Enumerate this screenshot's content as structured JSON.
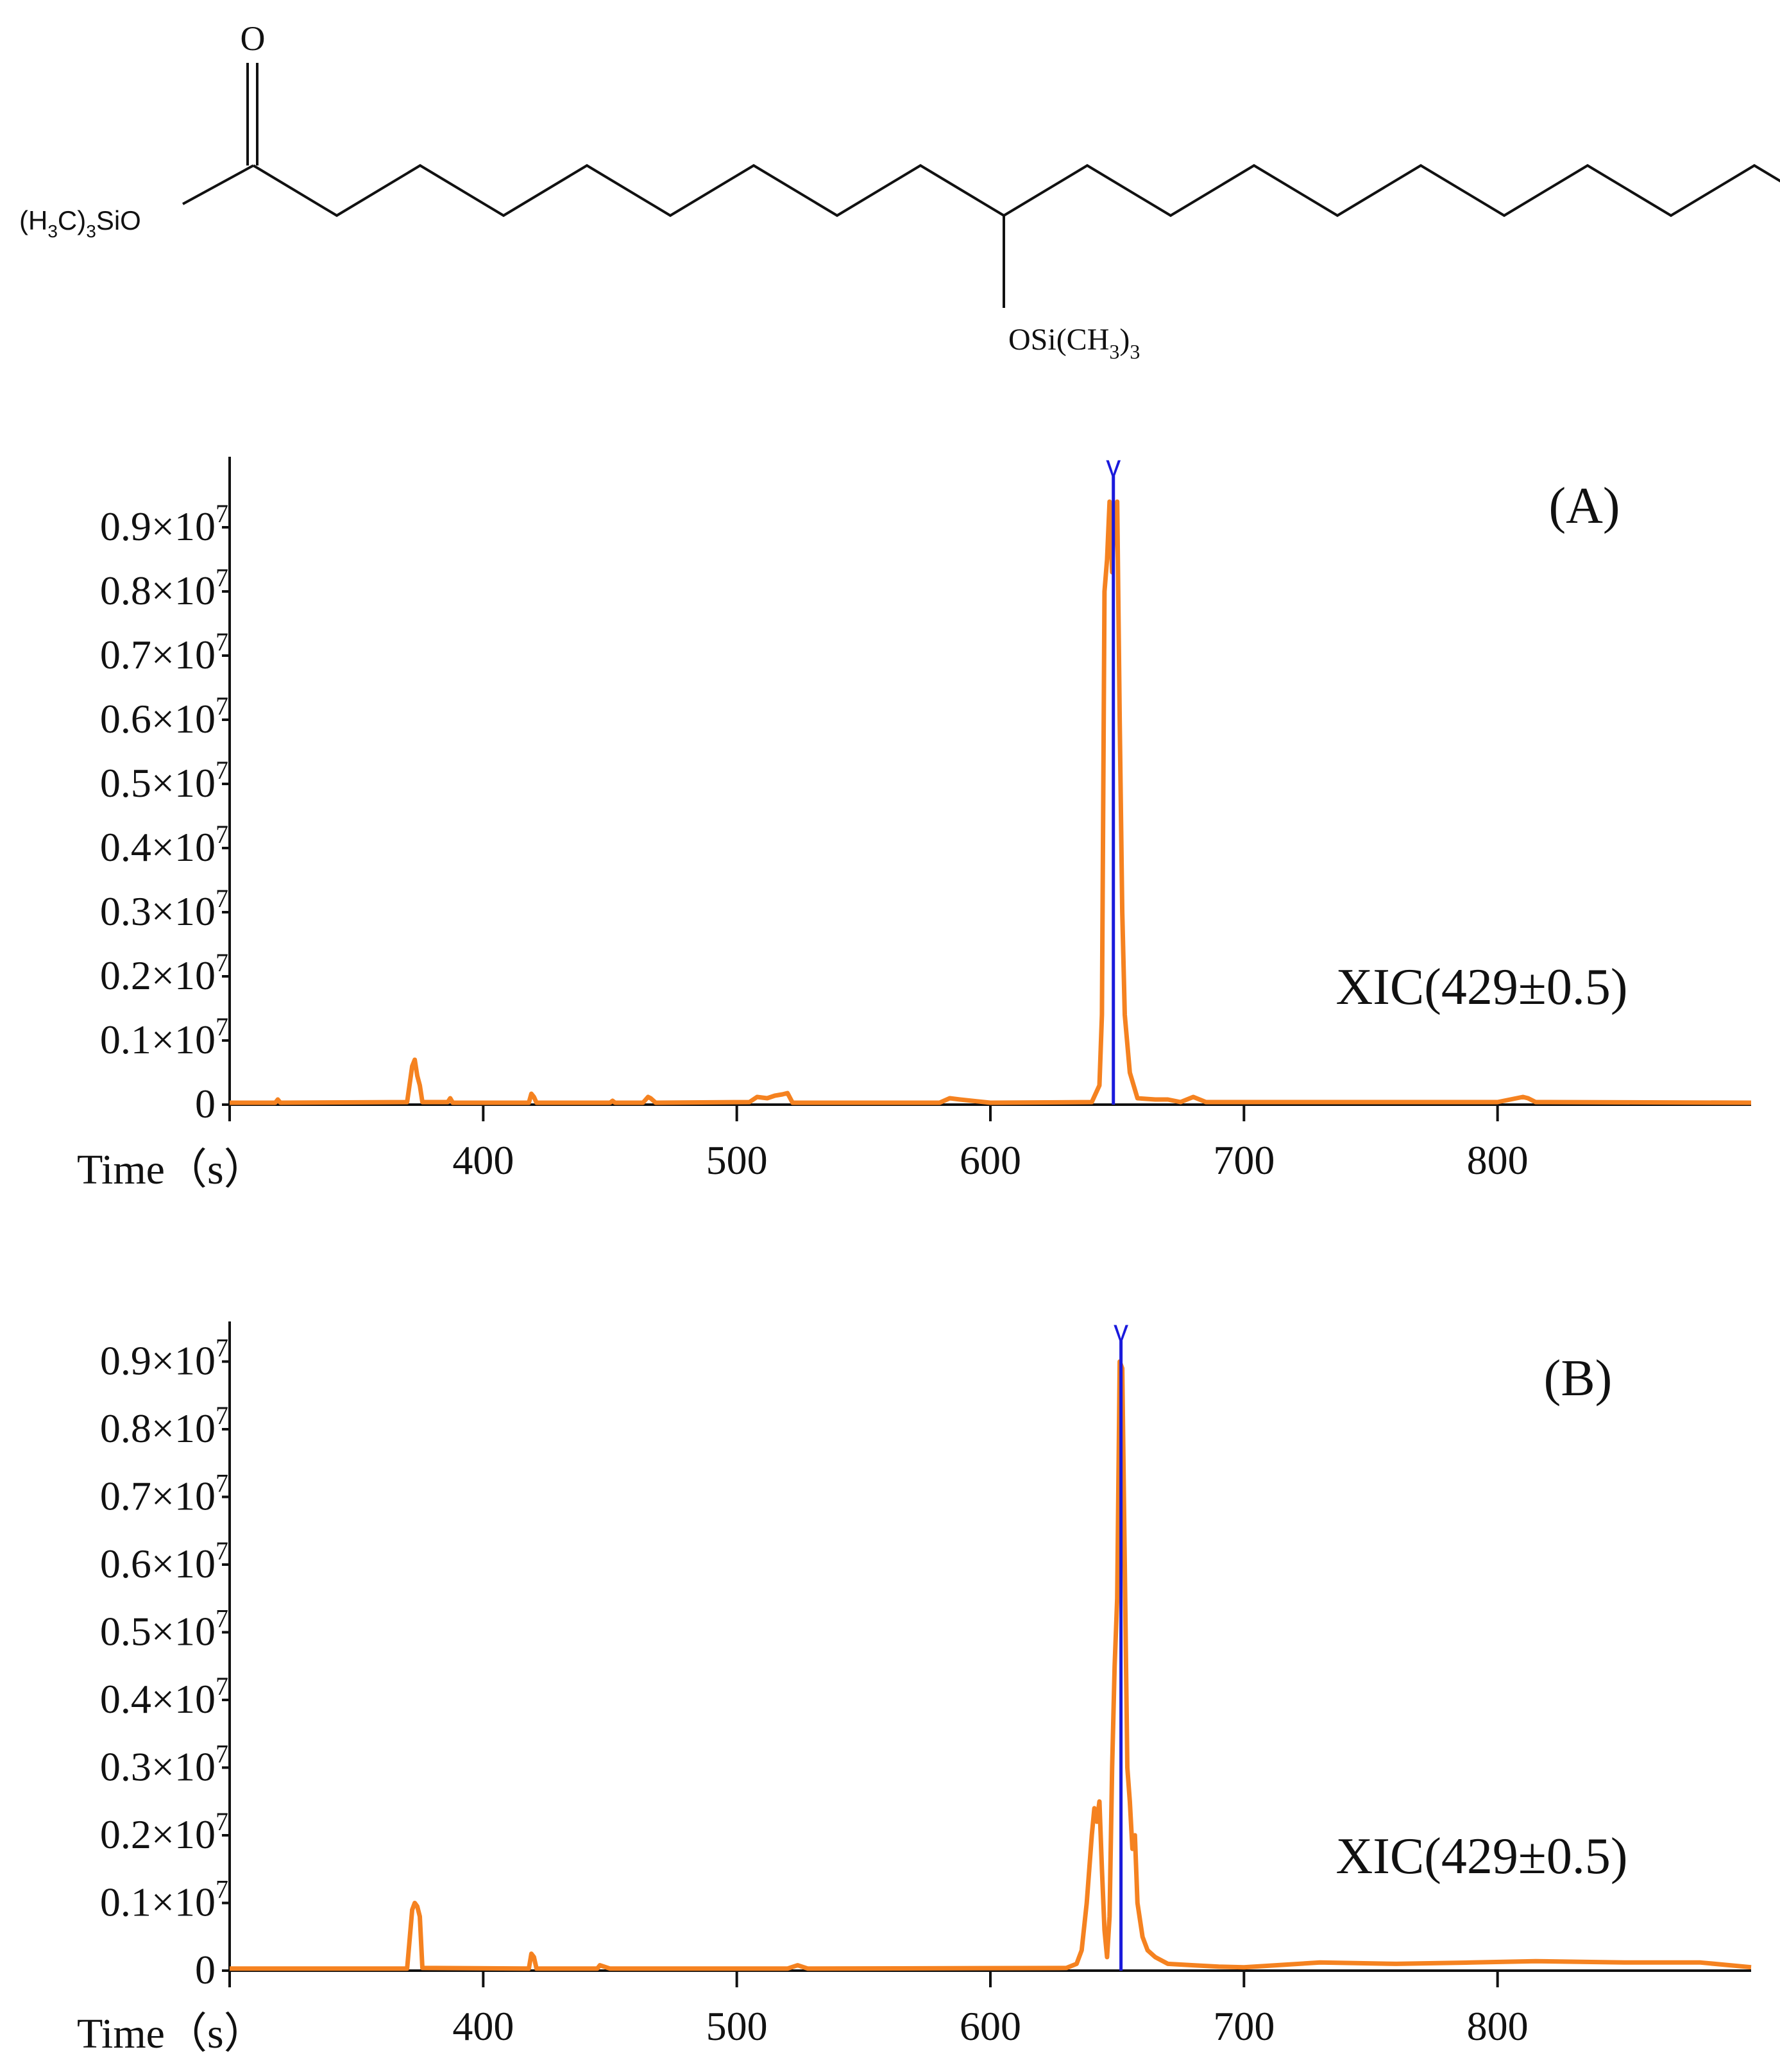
{
  "structure": {
    "carbonyl_O": "O",
    "ester_group": {
      "a": "(H",
      "s1": "3",
      "b": "C)",
      "s2": "3",
      "c": "SiO"
    },
    "ether_group": {
      "a": "OSi(CH",
      "s1": "3",
      "b": ")",
      "s2": "3"
    }
  },
  "colors": {
    "trace": "#f58220",
    "marker": "#1a1adc",
    "axis": "#111111"
  },
  "chart_data": [
    {
      "type": "line",
      "panel_label": "(A)",
      "annotation": "XIC(429±0.5)",
      "xlabel": "Time（s）",
      "xlim": [
        300,
        900
      ],
      "ylim": [
        0,
        0.96
      ],
      "x_ticks": [
        400,
        500,
        600,
        700,
        800
      ],
      "y_ticks": [
        {
          "value": 0,
          "label": "0"
        },
        {
          "value": 0.1,
          "label": "0.1×10",
          "exp": "7"
        },
        {
          "value": 0.2,
          "label": "0.2×10",
          "exp": "7"
        },
        {
          "value": 0.3,
          "label": "0.3×10",
          "exp": "7"
        },
        {
          "value": 0.4,
          "label": "0.4×10",
          "exp": "7"
        },
        {
          "value": 0.5,
          "label": "0.5×10",
          "exp": "7"
        },
        {
          "value": 0.6,
          "label": "0.6×10",
          "exp": "7"
        },
        {
          "value": 0.7,
          "label": "0.7×10",
          "exp": "7"
        },
        {
          "value": 0.8,
          "label": "0.8×10",
          "exp": "7"
        },
        {
          "value": 0.9,
          "label": "0.9×10",
          "exp": "7"
        }
      ],
      "marker_x": 648.5,
      "marker_label": "v",
      "x": [
        300,
        318,
        319,
        320,
        370,
        372,
        373,
        374,
        375,
        376,
        386,
        387,
        388,
        418,
        419,
        420,
        421,
        450,
        451,
        452,
        463,
        465,
        466,
        468,
        505,
        508,
        512,
        515,
        518,
        520,
        522,
        580,
        584,
        588,
        600,
        640,
        643,
        644,
        645,
        646,
        647,
        648,
        649,
        650,
        651,
        652,
        653,
        655,
        658,
        665,
        670,
        675,
        680,
        685,
        800,
        810,
        812,
        815,
        900
      ],
      "values": [
        0.003,
        0.003,
        0.008,
        0.003,
        0.004,
        0.06,
        0.07,
        0.045,
        0.03,
        0.004,
        0.004,
        0.01,
        0.003,
        0.003,
        0.017,
        0.012,
        0.003,
        0.003,
        0.006,
        0.003,
        0.003,
        0.012,
        0.01,
        0.003,
        0.004,
        0.012,
        0.01,
        0.014,
        0.016,
        0.018,
        0.003,
        0.003,
        0.01,
        0.008,
        0.003,
        0.004,
        0.03,
        0.14,
        0.8,
        0.85,
        0.94,
        0.83,
        0.93,
        0.94,
        0.6,
        0.3,
        0.14,
        0.05,
        0.01,
        0.008,
        0.008,
        0.004,
        0.012,
        0.004,
        0.004,
        0.012,
        0.01,
        0.004,
        0.003
      ]
    },
    {
      "type": "line",
      "panel_label": "(B)",
      "annotation": "XIC(429±0.5)",
      "xlabel": "Time（s）",
      "xlim": [
        300,
        900
      ],
      "ylim": [
        0,
        0.96
      ],
      "x_ticks": [
        400,
        500,
        600,
        700,
        800
      ],
      "y_ticks": [
        {
          "value": 0,
          "label": "0"
        },
        {
          "value": 0.1,
          "label": "0.1×10",
          "exp": "7"
        },
        {
          "value": 0.2,
          "label": "0.2×10",
          "exp": "7"
        },
        {
          "value": 0.3,
          "label": "0.3×10",
          "exp": "7"
        },
        {
          "value": 0.4,
          "label": "0.4×10",
          "exp": "7"
        },
        {
          "value": 0.5,
          "label": "0.5×10",
          "exp": "7"
        },
        {
          "value": 0.6,
          "label": "0.6×10",
          "exp": "7"
        },
        {
          "value": 0.7,
          "label": "0.7×10",
          "exp": "7"
        },
        {
          "value": 0.8,
          "label": "0.8×10",
          "exp": "7"
        },
        {
          "value": 0.9,
          "label": "0.9×10",
          "exp": "7"
        }
      ],
      "marker_x": 651.5,
      "marker_label": "v",
      "x": [
        300,
        370,
        372,
        373,
        374,
        375,
        376,
        418,
        419,
        420,
        421,
        445,
        446,
        450,
        520,
        524,
        528,
        630,
        634,
        636,
        638,
        640,
        641,
        642,
        643,
        644,
        645,
        646,
        647,
        648,
        649,
        650,
        651,
        652,
        653,
        654,
        655,
        656,
        657,
        658,
        660,
        662,
        665,
        670,
        680,
        690,
        700,
        730,
        760,
        790,
        815,
        850,
        880,
        900
      ],
      "values": [
        0.003,
        0.003,
        0.09,
        0.1,
        0.095,
        0.08,
        0.004,
        0.003,
        0.025,
        0.02,
        0.003,
        0.003,
        0.008,
        0.003,
        0.003,
        0.008,
        0.003,
        0.004,
        0.01,
        0.03,
        0.1,
        0.2,
        0.24,
        0.22,
        0.25,
        0.15,
        0.06,
        0.02,
        0.08,
        0.3,
        0.45,
        0.55,
        0.9,
        0.89,
        0.6,
        0.3,
        0.25,
        0.18,
        0.2,
        0.1,
        0.05,
        0.03,
        0.02,
        0.01,
        0.008,
        0.006,
        0.005,
        0.012,
        0.01,
        0.012,
        0.014,
        0.012,
        0.012,
        0.005
      ]
    }
  ]
}
